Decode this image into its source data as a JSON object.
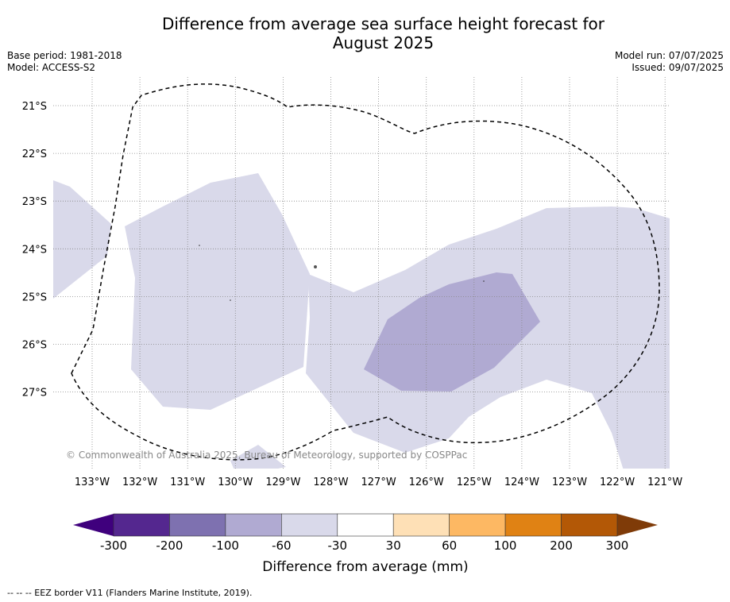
{
  "title": {
    "line1": "Difference from average sea surface height forecast for",
    "line2": "August 2025"
  },
  "meta_left": {
    "base_period": "Base period: 1981-2018",
    "model": "Model: ACCESS-S2"
  },
  "meta_right": {
    "model_run": "Model run: 07/07/2025",
    "issued": "Issued: 09/07/2025"
  },
  "map": {
    "lat_labels": [
      "21°S",
      "22°S",
      "23°S",
      "24°S",
      "25°S",
      "26°S",
      "27°S"
    ],
    "lon_labels": [
      "133°W",
      "132°W",
      "131°W",
      "130°W",
      "129°W",
      "128°W",
      "127°W",
      "126°W",
      "125°W",
      "124°W",
      "123°W",
      "122°W",
      "121°W"
    ],
    "copyright": "© Commonwealth of Australia 2025, Bureau of Meteorology, supported by COSPPac",
    "eez_border": "dashed",
    "colors": {
      "-60 to -30": "#d9d9ea",
      "-100 to -60": "#b0aad2"
    }
  },
  "colorbar": {
    "ticks": [
      "-300",
      "-200",
      "-100",
      "-60",
      "-30",
      "30",
      "60",
      "100",
      "200",
      "300"
    ],
    "colors": [
      "#3f007d",
      "#54278f",
      "#7e71b0",
      "#b0aad2",
      "#d9d9ea",
      "#ffffff",
      "#fee0b6",
      "#fdb863",
      "#e08214",
      "#b35806",
      "#7f3b08"
    ],
    "label": "Difference from average (mm)"
  },
  "footnote": "--  --  -- EEZ border V11 (Flanders Marine Institute, 2019)."
}
